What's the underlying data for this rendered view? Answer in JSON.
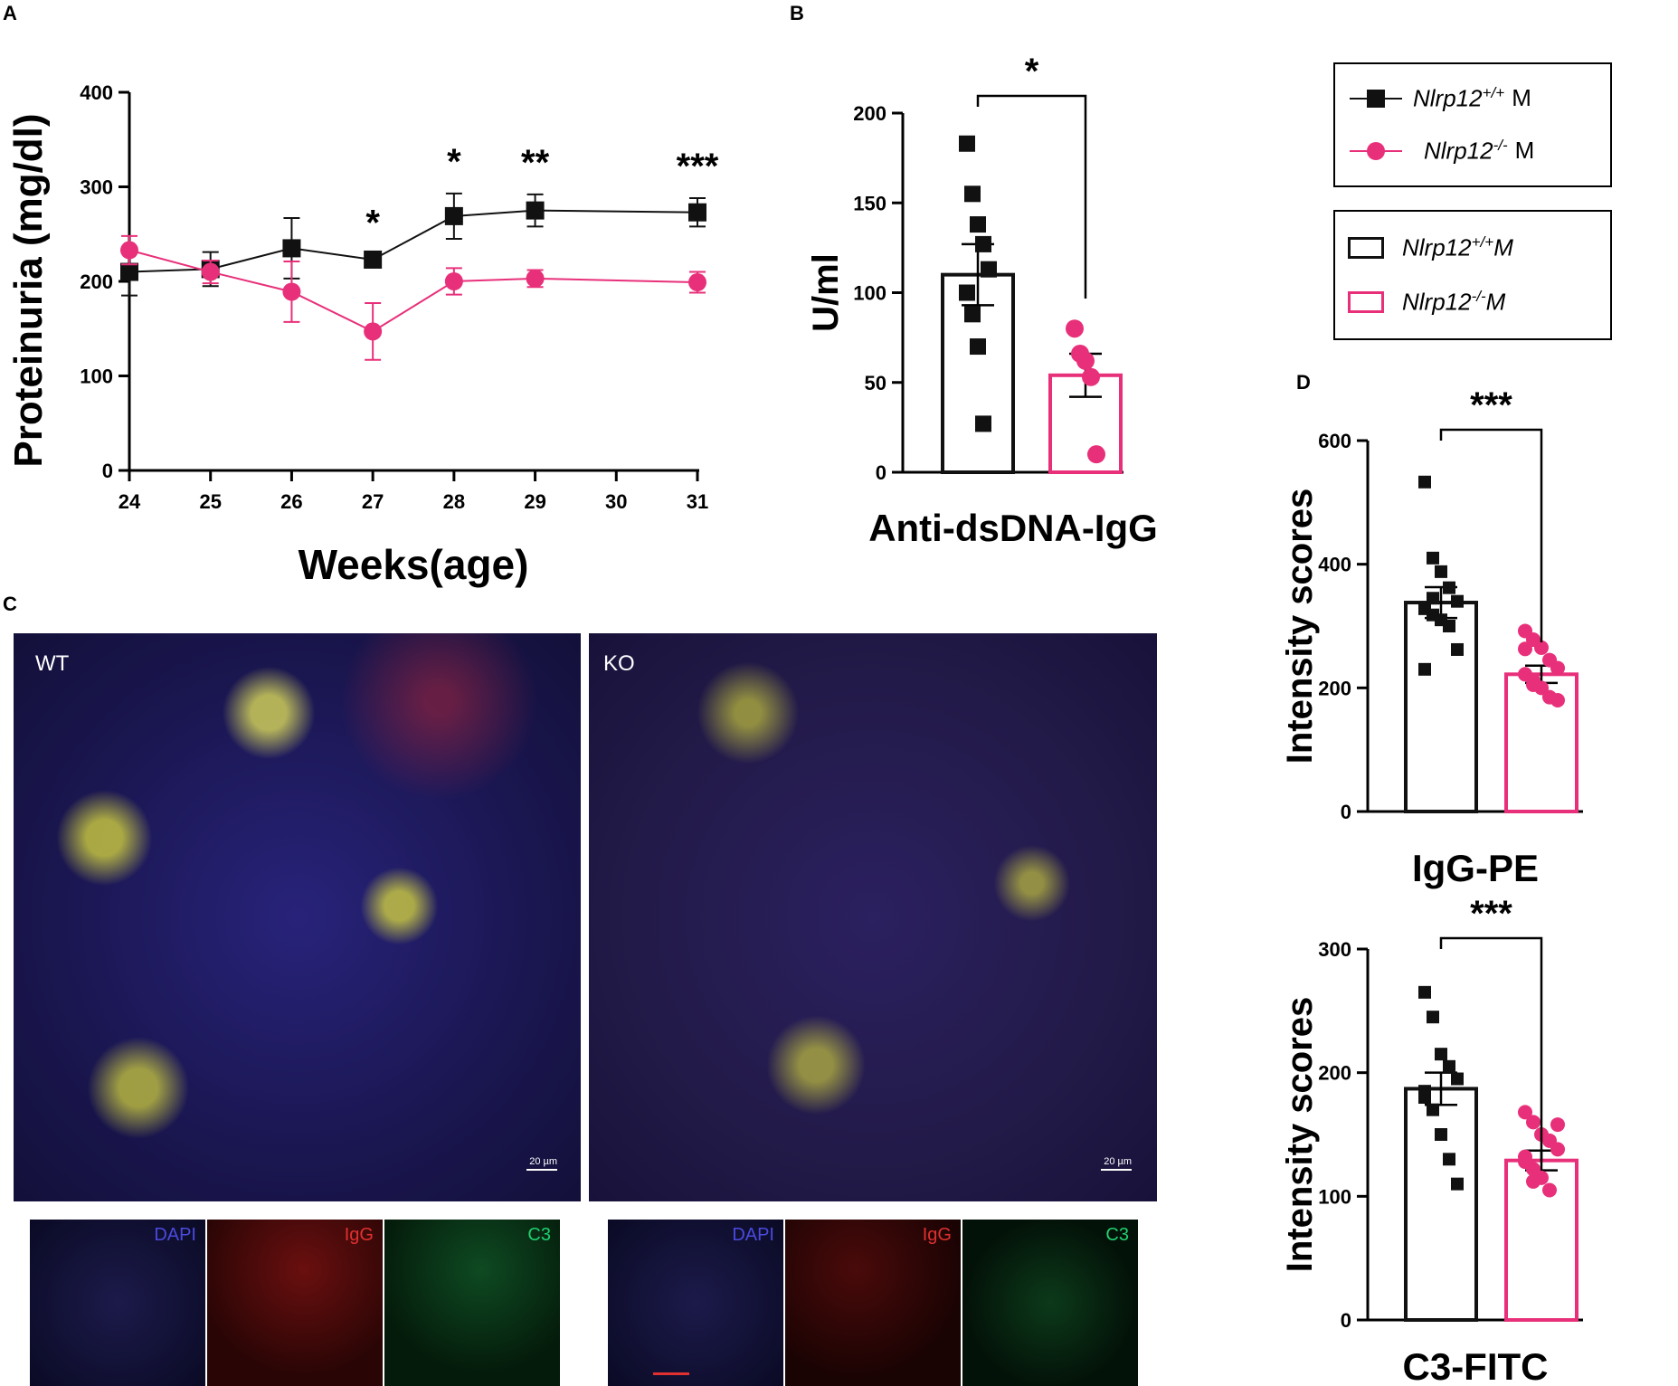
{
  "panels": {
    "a": "A",
    "b": "B",
    "c": "C",
    "d": "D"
  },
  "colors": {
    "wt": "#111111",
    "ko": "#e8307a"
  },
  "legend_top": {
    "items": [
      {
        "gene": "Nlrp12",
        "genotype": "+/+",
        "suffix": "M",
        "marker": "square",
        "color": "#111111"
      },
      {
        "gene": "Nlrp12",
        "genotype": "-/-",
        "suffix": "M",
        "marker": "circle",
        "color": "#e8307a"
      }
    ]
  },
  "legend_bottom": {
    "items": [
      {
        "gene": "Nlrp12",
        "genotype": "+/+",
        "suffix": "M",
        "color": "#111111"
      },
      {
        "gene": "Nlrp12",
        "genotype": "-/-",
        "suffix": "M",
        "color": "#e8307a"
      }
    ]
  },
  "chart_data": [
    {
      "panel": "A",
      "type": "line",
      "xlabel": "Weeks(age)",
      "ylabel": "Proteinuria (mg/dl)",
      "x_ticks": [
        "24",
        "25",
        "26",
        "27",
        "28",
        "29",
        "30",
        "31"
      ],
      "y_ticks": [
        "0",
        "100",
        "200",
        "300",
        "400"
      ],
      "xlim": [
        24,
        31
      ],
      "ylim": [
        0,
        400
      ],
      "series": [
        {
          "points": [
            {
              "x": 24,
              "y": 210,
              "err": 25
            },
            {
              "x": 25,
              "y": 213,
              "err": 18
            },
            {
              "x": 26,
              "y": 235,
              "err": 32
            },
            {
              "x": 27,
              "y": 223,
              "err": 5
            },
            {
              "x": 28,
              "y": 269,
              "err": 24
            },
            {
              "x": 29,
              "y": 275,
              "err": 17
            },
            {
              "x": 31,
              "y": 273,
              "err": 15
            }
          ]
        },
        {
          "points": [
            {
              "x": 24,
              "y": 233,
              "err": 15
            },
            {
              "x": 25,
              "y": 210,
              "err": 12
            },
            {
              "x": 26,
              "y": 189,
              "err": 32
            },
            {
              "x": 27,
              "y": 147,
              "err": 30
            },
            {
              "x": 28,
              "y": 200,
              "err": 14
            },
            {
              "x": 29,
              "y": 203,
              "err": 9
            },
            {
              "x": 31,
              "y": 199,
              "err": 11
            }
          ]
        }
      ],
      "significance": [
        {
          "x": 27,
          "label": "*"
        },
        {
          "x": 28,
          "label": "*"
        },
        {
          "x": 29,
          "label": "**"
        },
        {
          "x": 31,
          "label": "***"
        }
      ]
    },
    {
      "panel": "B",
      "type": "bar",
      "xlabel": "Anti-dsDNA-IgG",
      "ylabel": "U/ml",
      "y_ticks": [
        "0",
        "50",
        "100",
        "150",
        "200"
      ],
      "ylim": [
        0,
        200
      ],
      "bars": [
        {
          "mean": 110,
          "sem": 17,
          "points": [
            183,
            155,
            138,
            127,
            113,
            100,
            88,
            70,
            27
          ]
        },
        {
          "mean": 54,
          "sem": 12,
          "points": [
            80,
            66,
            62,
            53,
            10
          ]
        }
      ],
      "significance": "*"
    },
    {
      "panel": "D",
      "type": "bar",
      "xlabel": "IgG-PE",
      "ylabel": "Intensity scores",
      "y_ticks": [
        "0",
        "200",
        "400",
        "600"
      ],
      "ylim": [
        0,
        600
      ],
      "bars": [
        {
          "mean": 338,
          "sem": 25,
          "points": [
            533,
            410,
            388,
            362,
            340,
            328,
            318,
            310,
            300,
            262,
            230,
            345
          ]
        },
        {
          "mean": 222,
          "sem": 14,
          "points": [
            292,
            278,
            265,
            245,
            232,
            222,
            205,
            200,
            185,
            180,
            263,
            212
          ]
        }
      ],
      "significance": "***"
    },
    {
      "panel": "D",
      "type": "bar",
      "xlabel": "C3-FITC",
      "ylabel": "Intensity scores",
      "y_ticks": [
        "0",
        "100",
        "200",
        "300"
      ],
      "ylim": [
        0,
        300
      ],
      "bars": [
        {
          "mean": 187,
          "sem": 13,
          "points": [
            265,
            245,
            215,
            205,
            195,
            185,
            170,
            150,
            130,
            110,
            180
          ]
        },
        {
          "mean": 129,
          "sem": 8,
          "points": [
            168,
            160,
            150,
            145,
            138,
            128,
            122,
            115,
            105,
            158,
            132,
            112
          ]
        }
      ],
      "significance": "***"
    }
  ],
  "micrographs": {
    "wt": {
      "label": "WT",
      "scale": "20 µm"
    },
    "ko": {
      "label": "KO",
      "scale": "20 µm"
    },
    "channels": [
      {
        "name": "DAPI",
        "color": "#4a4adf"
      },
      {
        "name": "IgG",
        "color": "#e03030"
      },
      {
        "name": "C3",
        "color": "#20d070"
      }
    ]
  }
}
